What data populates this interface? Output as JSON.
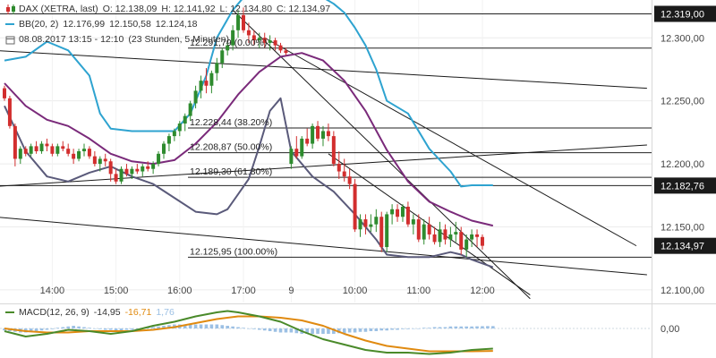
{
  "chart_data": {
    "type": "candlestick",
    "legend": {
      "dax_label": "DAX (XETRA, last)",
      "open": "O: 12.138,09",
      "high": "H: 12.141,92",
      "low": "L: 12.134,80",
      "close": "C: 12.134,97",
      "bb_label": "BB(20, 2)",
      "bb_upper": "12.176,99",
      "bb_mid": "12.150,58",
      "bb_lower": "12.124,18",
      "range": "08.08.2017 13:15 - 12:10",
      "interval": "(23 Stunden, 5 Minuten)"
    },
    "price_axis": {
      "ylim": [
        12090,
        12330
      ],
      "ticks": [
        {
          "value": 12300,
          "label": "12.300,00"
        },
        {
          "value": 12250,
          "label": "12.250,00"
        },
        {
          "value": 12200,
          "label": "12.200,00"
        },
        {
          "value": 12150,
          "label": "12.150,00"
        },
        {
          "value": 12100,
          "label": "12.100,00"
        }
      ],
      "highlights": [
        {
          "value": 12319,
          "label": "12.319,00"
        },
        {
          "value": 12182.76,
          "label": "12.182,76"
        },
        {
          "value": 12134.97,
          "label": "12.134,97"
        }
      ]
    },
    "time_axis": {
      "ticks": [
        {
          "i": 9,
          "label": "14:00"
        },
        {
          "i": 21,
          "label": "15:00"
        },
        {
          "i": 33,
          "label": "16:00"
        },
        {
          "i": 45,
          "label": "17:00"
        },
        {
          "i": 54,
          "label": "9"
        },
        {
          "i": 66,
          "label": "10:00"
        },
        {
          "i": 78,
          "label": "11:00"
        },
        {
          "i": 90,
          "label": "12:00"
        }
      ]
    },
    "fib_levels": [
      {
        "value": 12291.79,
        "label": "12.291,79 (0.00%)"
      },
      {
        "value": 12228.44,
        "label": "12.228,44 (38.20%)"
      },
      {
        "value": 12208.87,
        "label": "12.208,87 (50.00%)"
      },
      {
        "value": 12189.3,
        "label": "12.189,30 (61.80%)"
      },
      {
        "value": 12125.95,
        "label": "12.125,95 (100.00%)"
      }
    ],
    "levels": [
      12319,
      12182.76
    ],
    "trendlines": [
      {
        "from": [
          -2,
          12290
        ],
        "to": [
          121,
          12260
        ]
      },
      {
        "from": [
          -2,
          12182
        ],
        "to": [
          121,
          12215
        ]
      },
      {
        "from": [
          -2,
          12158
        ],
        "to": [
          121,
          12112
        ]
      },
      {
        "from": [
          43,
          12322
        ],
        "to": [
          99,
          12093
        ]
      },
      {
        "from": [
          49,
          12300
        ],
        "to": [
          119,
          12135
        ]
      },
      {
        "from": [
          61,
          12208
        ],
        "to": [
          99,
          12096
        ]
      }
    ],
    "candles": [
      [
        12260,
        12262,
        12250,
        12252
      ],
      [
        12252,
        12254,
        12228,
        12230
      ],
      [
        12230,
        12232,
        12198,
        12204
      ],
      [
        12204,
        12214,
        12200,
        12212
      ],
      [
        12212,
        12214,
        12206,
        12208
      ],
      [
        12208,
        12216,
        12206,
        12214
      ],
      [
        12214,
        12218,
        12208,
        12210
      ],
      [
        12210,
        12218,
        12208,
        12216
      ],
      [
        12216,
        12220,
        12210,
        12214
      ],
      [
        12214,
        12216,
        12206,
        12208
      ],
      [
        12208,
        12216,
        12206,
        12214
      ],
      [
        12214,
        12218,
        12210,
        12212
      ],
      [
        12212,
        12216,
        12206,
        12208
      ],
      [
        12208,
        12212,
        12200,
        12204
      ],
      [
        12204,
        12212,
        12202,
        12210
      ],
      [
        12210,
        12216,
        12206,
        12212
      ],
      [
        12212,
        12214,
        12204,
        12206
      ],
      [
        12206,
        12210,
        12198,
        12200
      ],
      [
        12200,
        12206,
        12194,
        12204
      ],
      [
        12204,
        12208,
        12198,
        12202
      ],
      [
        12202,
        12204,
        12186,
        12192
      ],
      [
        12192,
        12196,
        12184,
        12186
      ],
      [
        12186,
        12198,
        12184,
        12196
      ],
      [
        12196,
        12200,
        12190,
        12192
      ],
      [
        12192,
        12198,
        12188,
        12196
      ],
      [
        12196,
        12200,
        12192,
        12194
      ],
      [
        12194,
        12200,
        12190,
        12198
      ],
      [
        12198,
        12202,
        12194,
        12196
      ],
      [
        12196,
        12202,
        12192,
        12200
      ],
      [
        12200,
        12210,
        12198,
        12208
      ],
      [
        12208,
        12218,
        12204,
        12216
      ],
      [
        12216,
        12224,
        12210,
        12222
      ],
      [
        12222,
        12228,
        12218,
        12226
      ],
      [
        12226,
        12234,
        12222,
        12232
      ],
      [
        12232,
        12240,
        12226,
        12238
      ],
      [
        12238,
        12250,
        12234,
        12248
      ],
      [
        12248,
        12262,
        12244,
        12258
      ],
      [
        12258,
        12270,
        12252,
        12266
      ],
      [
        12266,
        12276,
        12256,
        12262
      ],
      [
        12262,
        12274,
        12256,
        12272
      ],
      [
        12272,
        12284,
        12266,
        12280
      ],
      [
        12280,
        12292,
        12276,
        12290
      ],
      [
        12290,
        12298,
        12286,
        12294
      ],
      [
        12294,
        12310,
        12290,
        12306
      ],
      [
        12306,
        12322,
        12300,
        12318
      ],
      [
        12318,
        12324,
        12304,
        12306
      ],
      [
        12306,
        12312,
        12296,
        12302
      ],
      [
        12302,
        12306,
        12294,
        12298
      ],
      [
        12298,
        12304,
        12292,
        12300
      ],
      [
        12300,
        12304,
        12292,
        12296
      ],
      [
        12296,
        12302,
        12290,
        12298
      ],
      [
        12298,
        12300,
        12290,
        12294
      ],
      [
        12294,
        12296,
        12288,
        12290
      ],
      [
        12290,
        12292,
        12286,
        12288
      ],
      [
        12200,
        12214,
        12196,
        12212
      ],
      [
        12212,
        12222,
        12204,
        12206
      ],
      [
        12206,
        12222,
        12204,
        12220
      ],
      [
        12220,
        12228,
        12214,
        12216
      ],
      [
        12216,
        12232,
        12212,
        12230
      ],
      [
        12230,
        12234,
        12218,
        12220
      ],
      [
        12220,
        12230,
        12214,
        12226
      ],
      [
        12226,
        12232,
        12218,
        12222
      ],
      [
        12222,
        12226,
        12198,
        12200
      ],
      [
        12200,
        12210,
        12188,
        12194
      ],
      [
        12194,
        12204,
        12186,
        12190
      ],
      [
        12190,
        12196,
        12180,
        12184
      ],
      [
        12184,
        12188,
        12146,
        12148
      ],
      [
        12148,
        12160,
        12142,
        12156
      ],
      [
        12156,
        12160,
        12144,
        12150
      ],
      [
        12150,
        12160,
        12146,
        12152
      ],
      [
        12152,
        12164,
        12146,
        12158
      ],
      [
        12158,
        12162,
        12130,
        12134
      ],
      [
        12134,
        12162,
        12130,
        12160
      ],
      [
        12160,
        12168,
        12152,
        12164
      ],
      [
        12164,
        12168,
        12154,
        12158
      ],
      [
        12158,
        12168,
        12154,
        12166
      ],
      [
        12166,
        12170,
        12150,
        12152
      ],
      [
        12152,
        12160,
        12144,
        12156
      ],
      [
        12156,
        12160,
        12138,
        12140
      ],
      [
        12140,
        12156,
        12136,
        12152
      ],
      [
        12152,
        12158,
        12140,
        12144
      ],
      [
        12144,
        12150,
        12136,
        12138
      ],
      [
        12138,
        12154,
        12134,
        12148
      ],
      [
        12148,
        12152,
        12136,
        12140
      ],
      [
        12140,
        12150,
        12134,
        12144
      ],
      [
        12144,
        12154,
        12138,
        12146
      ],
      [
        12146,
        12150,
        12128,
        12132
      ],
      [
        12132,
        12144,
        12126,
        12140
      ],
      [
        12140,
        12148,
        12134,
        12144
      ],
      [
        12144,
        12148,
        12134,
        12142
      ],
      [
        12142,
        12144,
        12132,
        12135
      ]
    ],
    "bb_upper": [
      [
        0,
        12282
      ],
      [
        4,
        12285
      ],
      [
        8,
        12297
      ],
      [
        12,
        12290
      ],
      [
        16,
        12270
      ],
      [
        18,
        12240
      ],
      [
        20,
        12228
      ],
      [
        24,
        12226
      ],
      [
        28,
        12226
      ],
      [
        32,
        12226
      ],
      [
        35,
        12240
      ],
      [
        38,
        12270
      ],
      [
        40,
        12300
      ],
      [
        43,
        12322
      ],
      [
        45,
        12332
      ],
      [
        48,
        12339
      ],
      [
        52,
        12340
      ],
      [
        56,
        12338
      ],
      [
        60,
        12332
      ],
      [
        62,
        12327
      ],
      [
        64,
        12320
      ],
      [
        66,
        12308
      ],
      [
        68,
        12294
      ],
      [
        70,
        12275
      ],
      [
        72,
        12250
      ],
      [
        76,
        12240
      ],
      [
        80,
        12212
      ],
      [
        84,
        12194
      ],
      [
        86,
        12182
      ],
      [
        88,
        12183
      ],
      [
        92,
        12183
      ]
    ],
    "bb_mid": [
      [
        0,
        12264
      ],
      [
        4,
        12246
      ],
      [
        8,
        12235
      ],
      [
        12,
        12230
      ],
      [
        16,
        12220
      ],
      [
        20,
        12208
      ],
      [
        24,
        12202
      ],
      [
        28,
        12200
      ],
      [
        32,
        12203
      ],
      [
        36,
        12216
      ],
      [
        40,
        12233
      ],
      [
        44,
        12255
      ],
      [
        48,
        12273
      ],
      [
        52,
        12285
      ],
      [
        56,
        12288
      ],
      [
        60,
        12282
      ],
      [
        64,
        12266
      ],
      [
        68,
        12242
      ],
      [
        72,
        12211
      ],
      [
        76,
        12186
      ],
      [
        80,
        12170
      ],
      [
        84,
        12162
      ],
      [
        88,
        12155
      ],
      [
        92,
        12151
      ]
    ],
    "bb_lower": [
      [
        0,
        12246
      ],
      [
        4,
        12210
      ],
      [
        8,
        12190
      ],
      [
        12,
        12186
      ],
      [
        16,
        12193
      ],
      [
        20,
        12198
      ],
      [
        24,
        12190
      ],
      [
        28,
        12184
      ],
      [
        32,
        12173
      ],
      [
        36,
        12162
      ],
      [
        40,
        12160
      ],
      [
        42,
        12164
      ],
      [
        44,
        12176
      ],
      [
        46,
        12188
      ],
      [
        48,
        12214
      ],
      [
        50,
        12242
      ],
      [
        52,
        12252
      ],
      [
        54,
        12210
      ],
      [
        58,
        12190
      ],
      [
        62,
        12178
      ],
      [
        66,
        12160
      ],
      [
        70,
        12140
      ],
      [
        72,
        12128
      ],
      [
        76,
        12126
      ],
      [
        80,
        12126
      ],
      [
        84,
        12130
      ],
      [
        86,
        12128
      ],
      [
        88,
        12124
      ],
      [
        92,
        12118
      ]
    ],
    "macd": {
      "label": "MACD(12, 26, 9)",
      "macd_value": "-14,95",
      "signal_value": "-16,71",
      "hist_value": "1,76",
      "ylim": [
        -22,
        18
      ],
      "ticks": [
        {
          "value": 0,
          "label": "0,00"
        }
      ],
      "macd_line": [
        [
          0,
          -2
        ],
        [
          4,
          -6
        ],
        [
          8,
          -4
        ],
        [
          12,
          -1
        ],
        [
          16,
          -2
        ],
        [
          20,
          -4
        ],
        [
          24,
          -2
        ],
        [
          28,
          2
        ],
        [
          32,
          5
        ],
        [
          36,
          9
        ],
        [
          40,
          12
        ],
        [
          42,
          13
        ],
        [
          44,
          12
        ],
        [
          48,
          9
        ],
        [
          52,
          5
        ],
        [
          56,
          -2
        ],
        [
          60,
          -8
        ],
        [
          64,
          -12
        ],
        [
          68,
          -16
        ],
        [
          72,
          -18
        ],
        [
          76,
          -18
        ],
        [
          80,
          -19
        ],
        [
          84,
          -18
        ],
        [
          88,
          -16
        ],
        [
          92,
          -15
        ]
      ],
      "signal_line": [
        [
          0,
          0
        ],
        [
          4,
          -2
        ],
        [
          8,
          -3
        ],
        [
          12,
          -3
        ],
        [
          16,
          -2
        ],
        [
          20,
          -2
        ],
        [
          24,
          -2
        ],
        [
          28,
          -1
        ],
        [
          32,
          1
        ],
        [
          36,
          4
        ],
        [
          40,
          7
        ],
        [
          44,
          9
        ],
        [
          48,
          9
        ],
        [
          52,
          8
        ],
        [
          56,
          6
        ],
        [
          60,
          2
        ],
        [
          64,
          -4
        ],
        [
          68,
          -9
        ],
        [
          72,
          -13
        ],
        [
          76,
          -15
        ],
        [
          80,
          -17
        ],
        [
          84,
          -17
        ],
        [
          88,
          -17
        ],
        [
          92,
          -16.7
        ]
      ],
      "histogram": [
        -1.5,
        -2,
        -2.5,
        -3,
        -3,
        -2.5,
        -2,
        -1.5,
        -1,
        -0.5,
        0.5,
        1,
        1.5,
        2,
        1.5,
        1,
        0.5,
        0,
        -0.5,
        -1,
        -1,
        -1.5,
        -1.5,
        -1,
        -1,
        -0.5,
        0,
        0.5,
        1,
        1.5,
        2,
        2.5,
        3,
        3,
        3,
        3,
        3,
        3,
        3,
        3,
        3,
        2.5,
        2,
        1.5,
        1,
        0.5,
        0,
        -0.5,
        -1,
        -1.5,
        -2,
        -2.5,
        -3,
        -3,
        -3,
        -3.5,
        -4,
        -4,
        -4,
        -4,
        -4,
        -4,
        -4,
        -3.5,
        -3.5,
        -3,
        -3,
        -2.5,
        -2.5,
        -2,
        -2,
        -1.5,
        -1.5,
        -1,
        -1,
        -0.5,
        -0.5,
        0,
        0,
        0.5,
        0.5,
        1,
        1,
        1,
        1.5,
        1.5,
        1.5,
        1.5,
        1.5,
        1.6,
        1.7,
        1.76,
        1.76
      ]
    },
    "colors": {
      "up": "#2e8b2e",
      "down": "#d22e2e",
      "bb_band": "#2ea3d0",
      "bb_mid": "#7a2a7a",
      "bb_lower": "#5a5a7a",
      "fib": "#222222",
      "macd_line": "#4a8a2a",
      "signal_line": "#e08a10",
      "histogram": "#9cc0e4",
      "axis_text": "#444444",
      "highlight_bg": "#1a1a1a"
    }
  }
}
